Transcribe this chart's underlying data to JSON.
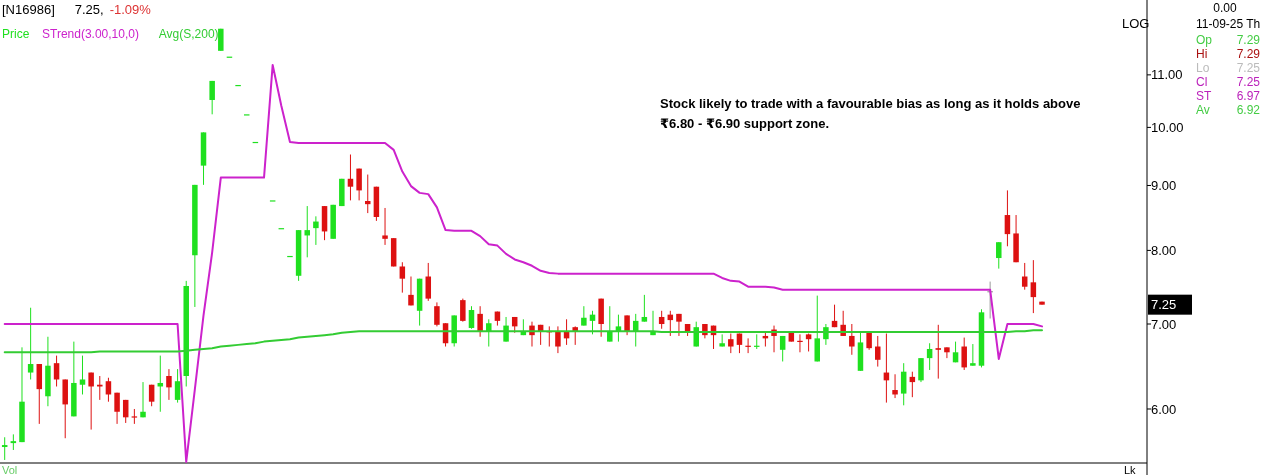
{
  "chart_data": {
    "type": "candlestick",
    "title": "[N16986]",
    "legend": "top left",
    "categories": [
      null,
      null,
      null,
      null,
      null,
      null,
      null,
      null,
      null,
      null,
      null,
      null,
      null,
      null,
      null,
      null,
      null,
      null,
      null,
      null,
      null,
      null,
      null,
      null,
      null,
      null,
      null,
      null,
      null,
      null,
      null,
      null,
      null,
      null,
      null,
      null,
      null,
      null,
      null,
      null,
      null,
      null,
      null,
      null,
      null,
      null,
      null,
      null,
      null,
      null,
      null,
      null,
      null,
      null,
      null,
      null,
      null,
      null,
      null,
      null,
      null,
      null,
      null,
      null,
      null,
      null,
      null,
      null,
      null,
      null,
      null,
      null,
      null,
      null,
      null,
      null,
      null,
      null,
      null,
      null,
      null,
      null,
      null,
      null,
      null,
      null,
      null,
      null,
      null,
      null,
      null,
      null,
      null,
      null,
      null,
      null,
      null,
      null,
      null,
      null,
      null,
      null,
      null,
      null,
      null,
      null,
      null,
      null,
      null,
      null,
      null,
      null,
      null,
      null,
      null,
      null,
      null,
      null,
      null,
      null,
      null
    ],
    "ylim": [
      5.44,
      12.6
    ],
    "yticks": [
      {
        "value": 6,
        "label": "6.00"
      },
      {
        "value": 7,
        "label": "7.00"
      },
      {
        "value": 8,
        "label": "8.00"
      },
      {
        "value": 9,
        "label": "9.00"
      },
      {
        "value": 10,
        "label": "10.00"
      },
      {
        "value": 11,
        "label": "11.00"
      }
    ],
    "log": true,
    "series": [
      {
        "type": "candlestick",
        "name": "Price",
        "color": "#1fe01f",
        "colors": [
          "#1fe01f",
          "#1fe01f",
          "#1fe01f",
          "#1fe01f",
          "#dd1111",
          "#1fe01f",
          "#dd1111",
          "#dd1111",
          "#1fe01f",
          "#1fe01f",
          "#dd1111",
          "#dd1111",
          "#dd1111",
          "#dd1111",
          "#dd1111",
          "#dd1111",
          "#1fe01f",
          "#dd1111",
          "#1fe01f",
          "#dd1111",
          "#1fe01f",
          "#1fe01f",
          "#1fe01f",
          "#1fe01f",
          "#1fe01f",
          "#1fe01f",
          "#1fe01f",
          "#1fe01f",
          "#1fe01f",
          "#1fe01f",
          null,
          "#1fe01f",
          "#1fe01f",
          "#1fe01f",
          "#1fe01f",
          "#1fe01f",
          "#1fe01f",
          "#dd1111",
          "#1fe01f",
          "#1fe01f",
          "#dd1111",
          "#dd1111",
          "#dd1111",
          "#dd1111",
          "#dd1111",
          "#dd1111",
          "#dd1111",
          "#dd1111",
          "#1fe01f",
          "#dd1111",
          "#dd1111",
          "#dd1111",
          "#1fe01f",
          "#dd1111",
          "#1fe01f",
          "#dd1111",
          "#1fe01f",
          "#dd1111",
          "#1fe01f",
          "#dd1111",
          "#1fe01f",
          "#dd1111",
          "#dd1111",
          "#dd1111",
          "#dd1111",
          "#dd1111",
          "#dd1111",
          "#1fe01f",
          "#1fe01f",
          "#dd1111",
          "#1fe01f",
          "#1fe01f",
          "#dd1111",
          "#1fe01f",
          "#1fe01f",
          "#1fe01f",
          "#dd1111",
          "#dd1111",
          "#dd1111",
          "#dd1111",
          "#1fe01f",
          "#dd1111",
          "#dd1111",
          "#1fe01f",
          "#dd1111",
          "#dd1111",
          "#dd1111",
          "#1fe01f",
          "#dd1111",
          "#dd1111",
          "#1fe01f",
          "#dd1111",
          "#dd1111",
          "#dd1111",
          "#1fe01f",
          "#1fe01f",
          "#dd1111",
          "#dd1111",
          "#dd1111",
          "#1fe01f",
          "#dd1111",
          "#dd1111",
          "#dd1111",
          "#dd1111",
          "#1fe01f",
          "#dd1111",
          "#1fe01f",
          "#1fe01f",
          "#dd1111",
          "#dd1111",
          "#1fe01f",
          "#dd1111",
          "#1fe01f",
          "#1fe01f",
          "#999999",
          "#1fe01f",
          "#dd1111",
          "#dd1111",
          "#dd1111",
          "#dd1111",
          "#dd1111"
        ],
        "ohlc": [
          [
            5.6,
            5.7,
            5.47,
            5.62
          ],
          [
            5.64,
            5.73,
            5.57,
            5.66
          ],
          [
            5.65,
            6.71,
            5.65,
            6.08
          ],
          [
            6.41,
            7.21,
            6.33,
            6.51
          ],
          [
            6.51,
            6.51,
            5.84,
            6.22
          ],
          [
            6.14,
            6.84,
            6.03,
            6.49
          ],
          [
            6.52,
            6.61,
            6.25,
            6.33
          ],
          [
            6.33,
            6.33,
            5.69,
            6.05
          ],
          [
            5.92,
            6.78,
            5.92,
            6.29
          ],
          [
            6.27,
            6.61,
            6.16,
            6.33
          ],
          [
            6.41,
            6.41,
            5.78,
            6.25
          ],
          [
            6.27,
            6.37,
            6.1,
            6.25
          ],
          [
            6.31,
            6.35,
            6.08,
            6.16
          ],
          [
            6.18,
            6.18,
            5.84,
            5.97
          ],
          [
            6.1,
            6.1,
            5.85,
            5.91
          ],
          [
            5.92,
            6.0,
            5.84,
            5.91
          ],
          [
            5.91,
            6.3,
            5.91,
            5.97
          ],
          [
            6.27,
            6.27,
            6.03,
            6.08
          ],
          [
            6.25,
            6.61,
            5.97,
            6.29
          ],
          [
            6.37,
            6.45,
            6.1,
            6.24
          ],
          [
            6.1,
            6.45,
            6.07,
            6.31
          ],
          [
            6.37,
            7.57,
            6.25,
            7.5
          ],
          [
            7.93,
            9.01,
            7.22,
            9.01
          ],
          [
            9.33,
            9.91,
            9.01,
            9.91
          ],
          [
            10.51,
            10.88,
            10.24,
            10.88
          ],
          [
            11.49,
            11.96,
            11.49,
            11.96
          ],
          [
            11.37,
            11.37,
            11.37,
            11.37
          ],
          [
            10.8,
            10.8,
            10.8,
            10.8
          ],
          [
            10.24,
            10.24,
            10.24,
            10.24
          ],
          [
            9.74,
            9.74,
            9.74,
            9.74
          ],
          null,
          [
            8.76,
            8.76,
            8.76,
            8.76
          ],
          [
            8.33,
            8.33,
            8.33,
            8.33
          ],
          [
            7.92,
            7.92,
            7.92,
            7.92
          ],
          [
            7.64,
            8.3,
            7.57,
            8.3
          ],
          [
            8.22,
            8.67,
            7.9,
            8.3
          ],
          [
            8.33,
            8.51,
            8.08,
            8.43
          ],
          [
            8.67,
            8.67,
            8.15,
            8.28
          ],
          [
            8.17,
            8.69,
            8.17,
            8.69
          ],
          [
            8.67,
            9.11,
            8.67,
            9.11
          ],
          [
            9.11,
            9.52,
            8.76,
            8.98
          ],
          [
            9.28,
            9.28,
            8.76,
            8.92
          ],
          [
            8.75,
            9.18,
            8.56,
            8.7
          ],
          [
            8.98,
            8.98,
            8.44,
            8.5
          ],
          [
            8.22,
            8.64,
            8.08,
            8.17
          ],
          [
            8.18,
            8.18,
            7.77,
            7.77
          ],
          [
            7.77,
            7.83,
            7.41,
            7.6
          ],
          [
            7.38,
            7.63,
            7.24,
            7.24
          ],
          [
            7.17,
            7.6,
            6.98,
            7.6
          ],
          [
            7.63,
            7.82,
            7.3,
            7.33
          ],
          [
            7.23,
            7.28,
            6.97,
            6.99
          ],
          [
            7.01,
            7.01,
            6.72,
            6.76
          ],
          [
            6.76,
            7.11,
            6.72,
            7.11
          ],
          [
            7.31,
            7.33,
            7.03,
            7.04
          ],
          [
            6.95,
            7.23,
            6.94,
            7.18
          ],
          [
            7.13,
            7.23,
            6.84,
            6.9
          ],
          [
            6.9,
            7.06,
            6.72,
            7.01
          ],
          [
            7.16,
            7.16,
            6.98,
            7.04
          ],
          [
            6.78,
            7.09,
            6.78,
            6.98
          ],
          [
            7.09,
            7.09,
            6.89,
            6.97
          ],
          [
            6.86,
            7.06,
            6.86,
            6.91
          ],
          [
            6.98,
            7.03,
            6.72,
            6.86
          ],
          [
            6.99,
            6.99,
            6.74,
            6.9
          ],
          [
            6.91,
            6.97,
            6.72,
            6.9
          ],
          [
            6.9,
            6.97,
            6.64,
            6.72
          ],
          [
            6.9,
            7.06,
            6.74,
            6.82
          ],
          [
            6.96,
            6.97,
            6.74,
            6.9
          ],
          [
            6.98,
            7.23,
            6.98,
            7.08
          ],
          [
            7.04,
            7.17,
            6.87,
            7.12
          ],
          [
            7.33,
            7.33,
            6.84,
            7.0
          ],
          [
            6.78,
            7.23,
            6.78,
            6.91
          ],
          [
            6.9,
            7.12,
            6.78,
            6.97
          ],
          [
            7.11,
            7.11,
            6.86,
            6.91
          ],
          [
            6.9,
            7.13,
            6.72,
            7.04
          ],
          [
            7.03,
            7.38,
            7.03,
            7.09
          ],
          [
            6.86,
            7.17,
            6.86,
            6.9
          ],
          [
            7.09,
            7.17,
            6.94,
            7.0
          ],
          [
            7.12,
            7.17,
            6.85,
            7.05
          ],
          [
            7.13,
            7.13,
            6.85,
            7.03
          ],
          [
            7.0,
            7.0,
            6.85,
            6.9
          ],
          [
            6.72,
            7.03,
            6.72,
            6.96
          ],
          [
            7.0,
            7.0,
            6.82,
            6.86
          ],
          [
            6.98,
            6.98,
            6.69,
            6.86
          ],
          [
            6.72,
            6.87,
            6.72,
            6.76
          ],
          [
            6.81,
            6.88,
            6.64,
            6.72
          ],
          [
            6.88,
            6.88,
            6.64,
            6.74
          ],
          [
            6.73,
            6.82,
            6.64,
            6.72
          ],
          [
            6.72,
            6.87,
            6.69,
            6.73
          ],
          [
            6.85,
            6.89,
            6.72,
            6.82
          ],
          [
            6.93,
            6.98,
            6.65,
            6.85
          ],
          [
            6.68,
            6.85,
            6.54,
            6.85
          ],
          [
            6.9,
            6.9,
            6.78,
            6.78
          ],
          [
            6.79,
            6.87,
            6.65,
            6.78
          ],
          [
            6.87,
            6.88,
            6.66,
            6.81
          ],
          [
            6.54,
            7.37,
            6.54,
            6.82
          ],
          [
            6.81,
            7.0,
            6.74,
            6.96
          ],
          [
            7.04,
            7.25,
            6.96,
            6.96
          ],
          [
            6.99,
            7.17,
            6.85,
            6.85
          ],
          [
            6.85,
            7.0,
            6.62,
            6.72
          ],
          [
            6.43,
            6.89,
            6.43,
            6.77
          ],
          [
            6.9,
            6.9,
            6.68,
            6.7
          ],
          [
            6.72,
            6.85,
            6.48,
            6.56
          ],
          [
            6.41,
            6.88,
            6.07,
            6.32
          ],
          [
            6.21,
            6.39,
            6.12,
            6.16
          ],
          [
            6.17,
            6.52,
            6.04,
            6.42
          ],
          [
            6.36,
            6.42,
            6.13,
            6.3
          ],
          [
            6.32,
            6.58,
            6.3,
            6.58
          ],
          [
            6.58,
            6.76,
            6.44,
            6.69
          ],
          [
            6.7,
            6.99,
            6.34,
            6.68
          ],
          [
            6.71,
            6.71,
            6.58,
            6.65
          ],
          [
            6.53,
            6.78,
            6.53,
            6.65
          ],
          [
            6.72,
            6.83,
            6.44,
            6.47
          ],
          [
            6.49,
            6.75,
            6.49,
            6.52
          ],
          [
            6.49,
            7.19,
            6.47,
            7.15
          ],
          [
            7.43,
            7.56,
            7.07,
            7.43
          ],
          [
            7.89,
            8.12,
            7.74,
            8.12
          ],
          [
            8.53,
            8.92,
            8.06,
            8.24
          ],
          [
            8.25,
            8.53,
            7.83,
            7.83
          ],
          [
            7.63,
            7.82,
            7.45,
            7.49
          ],
          [
            7.55,
            7.86,
            7.14,
            7.35
          ],
          [
            7.29,
            7.29,
            7.25,
            7.25
          ]
        ]
      },
      {
        "type": "line",
        "name": "STrend(3.00,10,0)",
        "color": "#cc22cc",
        "values": [
          7.0,
          7.0,
          7.0,
          7.0,
          7.0,
          7.0,
          7.0,
          7.0,
          7.0,
          7.0,
          7.0,
          7.0,
          7.0,
          7.0,
          7.0,
          7.0,
          7.0,
          7.0,
          7.0,
          7.0,
          7.0,
          5.45,
          6.22,
          7.11,
          7.97,
          9.13,
          9.13,
          9.13,
          9.13,
          9.13,
          9.13,
          11.2,
          10.4,
          9.74,
          9.72,
          9.72,
          9.72,
          9.72,
          9.72,
          9.72,
          9.72,
          9.72,
          9.72,
          9.72,
          9.72,
          9.6,
          9.23,
          8.99,
          8.88,
          8.86,
          8.65,
          8.3,
          8.29,
          8.29,
          8.29,
          8.21,
          8.09,
          8.07,
          7.95,
          7.87,
          7.83,
          7.78,
          7.71,
          7.68,
          7.67,
          7.67,
          7.67,
          7.67,
          7.67,
          7.67,
          7.67,
          7.67,
          7.67,
          7.67,
          7.67,
          7.67,
          7.67,
          7.67,
          7.67,
          7.67,
          7.67,
          7.67,
          7.67,
          7.61,
          7.57,
          7.56,
          7.49,
          7.49,
          7.49,
          7.48,
          7.45,
          7.45,
          7.45,
          7.45,
          7.45,
          7.45,
          7.45,
          7.45,
          7.45,
          7.45,
          7.45,
          7.45,
          7.45,
          7.45,
          7.45,
          7.45,
          7.45,
          7.45,
          7.45,
          7.45,
          7.45,
          7.45,
          7.45,
          7.45,
          7.45,
          6.57,
          7.0,
          7.0,
          7.0,
          7.0,
          6.97
        ]
      },
      {
        "type": "line",
        "name": "Avg(S,200)",
        "color": "#33cc33",
        "values": [
          6.65,
          6.65,
          6.65,
          6.65,
          6.65,
          6.65,
          6.65,
          6.65,
          6.65,
          6.65,
          6.65,
          6.66,
          6.66,
          6.66,
          6.66,
          6.66,
          6.66,
          6.66,
          6.66,
          6.66,
          6.66,
          6.67,
          6.68,
          6.69,
          6.7,
          6.72,
          6.73,
          6.74,
          6.75,
          6.76,
          6.78,
          6.79,
          6.8,
          6.81,
          6.83,
          6.84,
          6.85,
          6.86,
          6.87,
          6.89,
          6.9,
          6.91,
          6.91,
          6.91,
          6.91,
          6.91,
          6.91,
          6.91,
          6.91,
          6.91,
          6.91,
          6.91,
          6.91,
          6.91,
          6.91,
          6.91,
          6.91,
          6.91,
          6.91,
          6.91,
          6.91,
          6.91,
          6.91,
          6.91,
          6.91,
          6.91,
          6.91,
          6.91,
          6.91,
          6.91,
          6.91,
          6.91,
          6.91,
          6.91,
          6.91,
          6.91,
          6.9,
          6.9,
          6.9,
          6.9,
          6.9,
          6.9,
          6.9,
          6.9,
          6.9,
          6.9,
          6.9,
          6.9,
          6.9,
          6.9,
          6.9,
          6.9,
          6.9,
          6.9,
          6.9,
          6.9,
          6.9,
          6.9,
          6.9,
          6.9,
          6.9,
          6.9,
          6.9,
          6.9,
          6.9,
          6.9,
          6.9,
          6.9,
          6.9,
          6.9,
          6.9,
          6.9,
          6.9,
          6.9,
          6.9,
          6.9,
          6.9,
          6.91,
          6.91,
          6.92,
          6.92
        ]
      }
    ],
    "annotations": [
      "Stock likely to trade with a favourable bias as long as it holds above ₹6.80 - ₹6.90 support zone.",
      "7.25,",
      "-1.09%",
      "LOG",
      "0.00",
      "11-09-25 Th",
      "Op 7.29",
      "Hi 7.29",
      "Lo 7.25",
      "Cl 7.25",
      "ST 6.97",
      "Av 6.92",
      "Vol",
      "Lk",
      "7.25"
    ]
  }
}
